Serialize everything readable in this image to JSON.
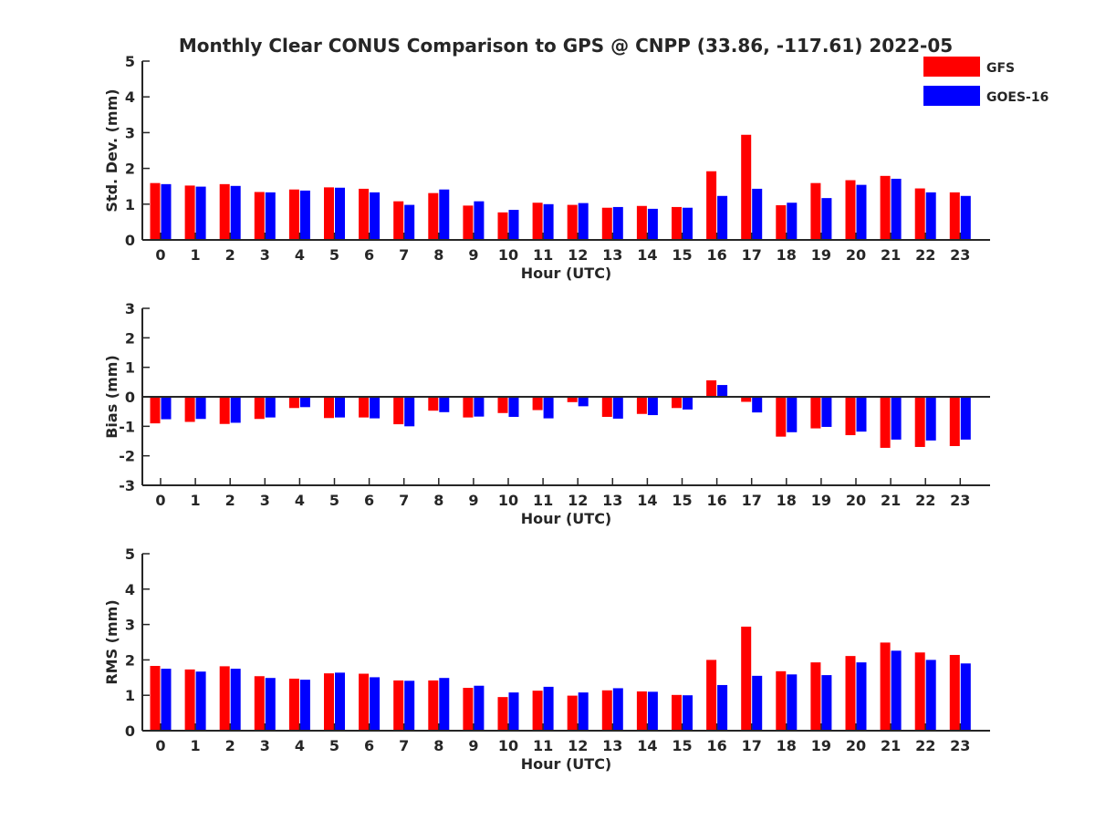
{
  "title": "Monthly Clear CONUS Comparison to GPS @ CNPP (33.86, -117.61) 2022-05",
  "legend": {
    "position": "top-right",
    "entries": [
      {
        "label": "GFS",
        "color": "#ff0000"
      },
      {
        "label": "GOES-16",
        "color": "#0000ff"
      }
    ]
  },
  "chart_data": [
    {
      "type": "bar",
      "title": "Monthly Clear CONUS Comparison to GPS @ CNPP (33.86, -117.61) 2022-05",
      "xlabel": "Hour (UTC)",
      "ylabel": "Std. Dev. (mm)",
      "ylim": [
        0,
        5
      ],
      "yticks": [
        0,
        1,
        2,
        3,
        4,
        5
      ],
      "grid": false,
      "categories": [
        "0",
        "1",
        "2",
        "3",
        "4",
        "5",
        "6",
        "7",
        "8",
        "9",
        "10",
        "11",
        "12",
        "13",
        "14",
        "15",
        "16",
        "17",
        "18",
        "19",
        "20",
        "21",
        "22",
        "23"
      ],
      "series": [
        {
          "name": "GFS",
          "color": "#ff0000",
          "values": [
            1.59,
            1.52,
            1.56,
            1.34,
            1.41,
            1.47,
            1.43,
            1.08,
            1.31,
            0.96,
            0.77,
            1.04,
            0.98,
            0.9,
            0.95,
            0.92,
            1.92,
            2.94,
            0.97,
            1.59,
            1.67,
            1.79,
            1.44,
            1.33
          ]
        },
        {
          "name": "GOES-16",
          "color": "#0000ff",
          "values": [
            1.56,
            1.49,
            1.51,
            1.33,
            1.38,
            1.46,
            1.33,
            0.98,
            1.41,
            1.08,
            0.84,
            1.0,
            1.03,
            0.92,
            0.87,
            0.9,
            1.23,
            1.43,
            1.04,
            1.17,
            1.54,
            1.71,
            1.33,
            1.23
          ]
        }
      ]
    },
    {
      "type": "bar",
      "xlabel": "Hour (UTC)",
      "ylabel": "Bias (mm)",
      "ylim": [
        -3,
        3
      ],
      "yticks": [
        -3,
        -2,
        -1,
        0,
        1,
        2,
        3
      ],
      "grid": false,
      "zero_line": true,
      "categories": [
        "0",
        "1",
        "2",
        "3",
        "4",
        "5",
        "6",
        "7",
        "8",
        "9",
        "10",
        "11",
        "12",
        "13",
        "14",
        "15",
        "16",
        "17",
        "18",
        "19",
        "20",
        "21",
        "22",
        "23"
      ],
      "series": [
        {
          "name": "GFS",
          "color": "#ff0000",
          "values": [
            -0.9,
            -0.85,
            -0.92,
            -0.75,
            -0.38,
            -0.72,
            -0.7,
            -0.93,
            -0.47,
            -0.7,
            -0.55,
            -0.45,
            -0.18,
            -0.68,
            -0.58,
            -0.38,
            0.56,
            -0.17,
            -1.35,
            -1.07,
            -1.3,
            -1.73,
            -1.7,
            -1.67
          ]
        },
        {
          "name": "GOES-16",
          "color": "#0000ff",
          "values": [
            -0.76,
            -0.75,
            -0.88,
            -0.7,
            -0.35,
            -0.7,
            -0.73,
            -1.0,
            -0.52,
            -0.67,
            -0.68,
            -0.73,
            -0.32,
            -0.74,
            -0.62,
            -0.43,
            0.4,
            -0.53,
            -1.2,
            -1.02,
            -1.18,
            -1.45,
            -1.48,
            -1.45
          ]
        }
      ]
    },
    {
      "type": "bar",
      "xlabel": "Hour (UTC)",
      "ylabel": "RMS (mm)",
      "ylim": [
        0,
        5
      ],
      "yticks": [
        0,
        1,
        2,
        3,
        4,
        5
      ],
      "grid": false,
      "categories": [
        "0",
        "1",
        "2",
        "3",
        "4",
        "5",
        "6",
        "7",
        "8",
        "9",
        "10",
        "11",
        "12",
        "13",
        "14",
        "15",
        "16",
        "17",
        "18",
        "19",
        "20",
        "21",
        "22",
        "23"
      ],
      "series": [
        {
          "name": "GFS",
          "color": "#ff0000",
          "values": [
            1.83,
            1.73,
            1.82,
            1.54,
            1.47,
            1.62,
            1.61,
            1.42,
            1.42,
            1.21,
            0.95,
            1.13,
            0.99,
            1.14,
            1.11,
            1.01,
            2.0,
            2.94,
            1.68,
            1.93,
            2.11,
            2.49,
            2.21,
            2.14
          ]
        },
        {
          "name": "GOES-16",
          "color": "#0000ff",
          "values": [
            1.75,
            1.67,
            1.75,
            1.49,
            1.44,
            1.64,
            1.51,
            1.41,
            1.49,
            1.27,
            1.08,
            1.24,
            1.08,
            1.2,
            1.1,
            1.0,
            1.29,
            1.55,
            1.59,
            1.57,
            1.93,
            2.26,
            2.0,
            1.9
          ]
        }
      ]
    }
  ]
}
